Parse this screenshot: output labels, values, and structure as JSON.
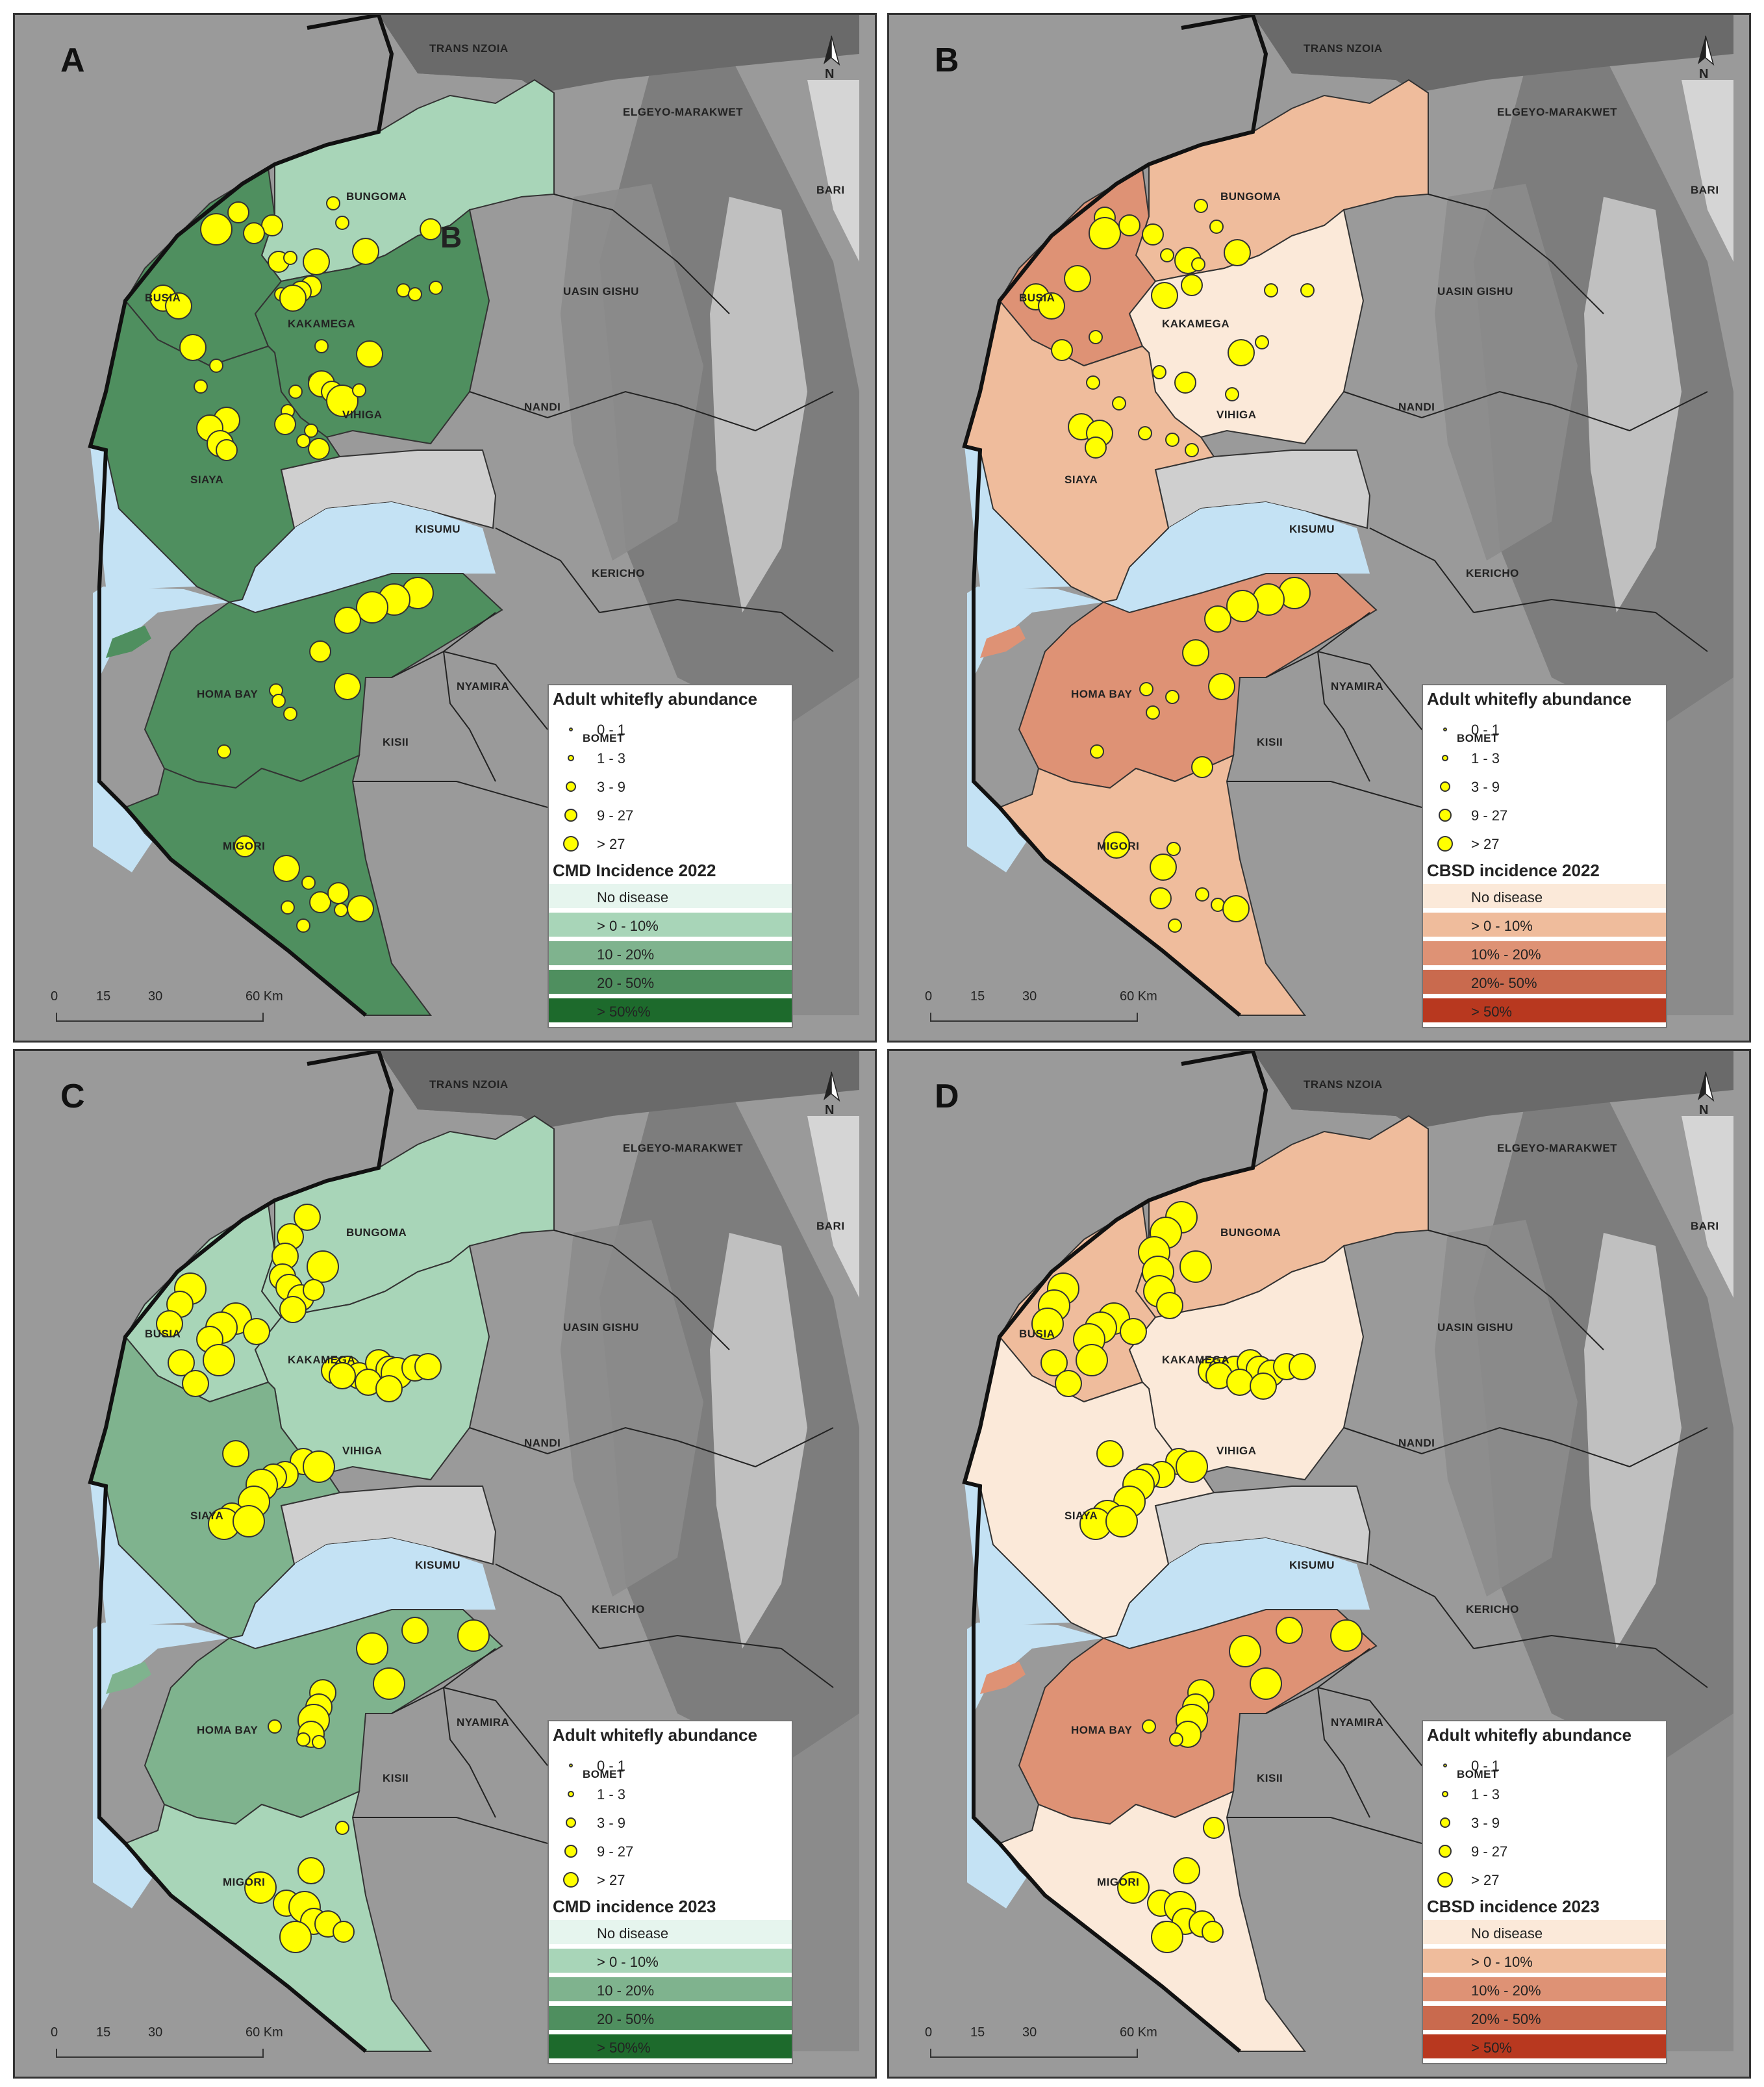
{
  "colors": {
    "lake": "#c4e2f4",
    "relief_light": "#d6d6d6",
    "relief_dark": "#666666",
    "dot_fill": "#ffff00",
    "cmd_scale": [
      "#e6f5ee",
      "#a8d5b8",
      "#7fb38e",
      "#4f8f5f",
      "#1d6a2c"
    ],
    "cbsd_scale": [
      "#fbe9d9",
      "#efbc9c",
      "#de9275",
      "#c96a4e",
      "#b8381f"
    ]
  },
  "counties": {
    "trans_nzoia": "TRANS NZOIA",
    "elgeyo": "ELGEYO-MARAKWET",
    "bungoma": "BUNGOMA",
    "busia": "BUSIA",
    "kakamega": "KAKAMEGA",
    "uasin_gishu": "UASIN GISHU",
    "nandi": "NANDI",
    "vihiga": "VIHIGA",
    "siaya": "SIAYA",
    "kisumu": "KISUMU",
    "kericho": "KERICHO",
    "homa_bay": "HOMA BAY",
    "nyamira": "NYAMIRA",
    "kisii": "KISII",
    "bomet": "BOMET",
    "migori": "MIGORI",
    "bari": "BARI"
  },
  "north_label": "N",
  "scale_ticks": [
    "0",
    "15",
    "30",
    "60 Km"
  ],
  "whitefly_legend": {
    "title": "Adult whitefly abundance",
    "classes": [
      "0 - 1",
      "1 - 3",
      "3 - 9",
      "9 - 27",
      "> 27"
    ]
  },
  "panels": [
    {
      "label": "A",
      "extra_label": "B",
      "scheme": "cmd",
      "legend_title": "CMD Incidence 2022",
      "legend_classes": [
        "No disease",
        "> 0 - 10%",
        "10 - 20%",
        "20 - 50%",
        "> 50%%"
      ],
      "incidence_class": {
        "bungoma": 1,
        "busia": 3,
        "kakamega": 3,
        "siaya": 3,
        "homa_bay": 3,
        "migori": 3
      },
      "points": [
        [
          165,
          175,
          4
        ],
        [
          182,
          162,
          2
        ],
        [
          208,
          172,
          2
        ],
        [
          255,
          155,
          1
        ],
        [
          330,
          175,
          2
        ],
        [
          262,
          170,
          1
        ],
        [
          194,
          178,
          2
        ],
        [
          213,
          200,
          2
        ],
        [
          222,
          197,
          1
        ],
        [
          242,
          200,
          3
        ],
        [
          280,
          192,
          3
        ],
        [
          238,
          219,
          2
        ],
        [
          230,
          223,
          2
        ],
        [
          124,
          228,
          3
        ],
        [
          136,
          234,
          3
        ],
        [
          215,
          225,
          1
        ],
        [
          224,
          228,
          3
        ],
        [
          309,
          222,
          1
        ],
        [
          318,
          225,
          1
        ],
        [
          334,
          220,
          1
        ],
        [
          147,
          266,
          3
        ],
        [
          165,
          280,
          1
        ],
        [
          283,
          271,
          3
        ],
        [
          246,
          265,
          1
        ],
        [
          241,
          291,
          1
        ],
        [
          226,
          300,
          1
        ],
        [
          246,
          294,
          3
        ],
        [
          254,
          300,
          2
        ],
        [
          262,
          307,
          4
        ],
        [
          153,
          296,
          1
        ],
        [
          275,
          299,
          1
        ],
        [
          220,
          315,
          1
        ],
        [
          218,
          325,
          2
        ],
        [
          173,
          322,
          3
        ],
        [
          160,
          328,
          3
        ],
        [
          168,
          340,
          3
        ],
        [
          238,
          330,
          1
        ],
        [
          232,
          338,
          1
        ],
        [
          173,
          345,
          2
        ],
        [
          244,
          344,
          2
        ],
        [
          320,
          455,
          4
        ],
        [
          302,
          460,
          4
        ],
        [
          285,
          466,
          4
        ],
        [
          266,
          476,
          3
        ],
        [
          245,
          500,
          2
        ],
        [
          266,
          527,
          3
        ],
        [
          211,
          530,
          1
        ],
        [
          213,
          538,
          1
        ],
        [
          222,
          548,
          1
        ],
        [
          171,
          577,
          1
        ],
        [
          187,
          650,
          2
        ],
        [
          219,
          667,
          3
        ],
        [
          236,
          678,
          1
        ],
        [
          245,
          693,
          2
        ],
        [
          259,
          686,
          2
        ],
        [
          276,
          698,
          3
        ],
        [
          220,
          697,
          1
        ],
        [
          261,
          699,
          1
        ],
        [
          232,
          711,
          1
        ]
      ]
    },
    {
      "label": "B",
      "scheme": "cbsd",
      "legend_title": "CBSD incidence 2022",
      "legend_classes": [
        "No disease",
        "> 0 - 10%",
        "10% - 20%",
        "20%- 50%",
        "> 50%"
      ],
      "incidence_class": {
        "bungoma": 1,
        "busia": 2,
        "kakamega": 0,
        "siaya": 1,
        "homa_bay": 2,
        "migori": 1
      },
      "points": [
        [
          836,
          166,
          2
        ],
        [
          836,
          178,
          4
        ],
        [
          855,
          172,
          2
        ],
        [
          873,
          179,
          2
        ],
        [
          910,
          157,
          1
        ],
        [
          922,
          173,
          1
        ],
        [
          938,
          193,
          3
        ],
        [
          900,
          199,
          3
        ],
        [
          884,
          195,
          1
        ],
        [
          908,
          202,
          1
        ],
        [
          903,
          218,
          2
        ],
        [
          882,
          226,
          3
        ],
        [
          815,
          213,
          3
        ],
        [
          964,
          222,
          1
        ],
        [
          992,
          222,
          1
        ],
        [
          783,
          227,
          3
        ],
        [
          795,
          234,
          3
        ],
        [
          957,
          262,
          1
        ],
        [
          941,
          270,
          3
        ],
        [
          803,
          268,
          2
        ],
        [
          829,
          258,
          1
        ],
        [
          878,
          285,
          1
        ],
        [
          898,
          293,
          2
        ],
        [
          934,
          302,
          1
        ],
        [
          827,
          293,
          1
        ],
        [
          847,
          309,
          1
        ],
        [
          818,
          327,
          3
        ],
        [
          832,
          332,
          3
        ],
        [
          867,
          332,
          1
        ],
        [
          888,
          337,
          1
        ],
        [
          829,
          343,
          2
        ],
        [
          903,
          345,
          1
        ],
        [
          982,
          455,
          4
        ],
        [
          962,
          460,
          4
        ],
        [
          942,
          465,
          4
        ],
        [
          923,
          475,
          3
        ],
        [
          906,
          501,
          3
        ],
        [
          926,
          527,
          3
        ],
        [
          868,
          529,
          1
        ],
        [
          873,
          547,
          1
        ],
        [
          888,
          535,
          1
        ],
        [
          830,
          577,
          1
        ],
        [
          911,
          589,
          2
        ],
        [
          845,
          649,
          3
        ],
        [
          881,
          666,
          3
        ],
        [
          889,
          652,
          1
        ],
        [
          879,
          690,
          2
        ],
        [
          923,
          695,
          1
        ],
        [
          911,
          687,
          1
        ],
        [
          937,
          698,
          3
        ],
        [
          890,
          711,
          1
        ]
      ]
    },
    {
      "label": "C",
      "scheme": "cmd",
      "legend_title": "CMD incidence 2023",
      "legend_classes": [
        "No disease",
        "> 0 - 10%",
        "10 - 20%",
        "20 - 50%",
        "> 50%%"
      ],
      "incidence_class": {
        "bungoma": 1,
        "busia": 1,
        "kakamega": 1,
        "siaya": 2,
        "homa_bay": 2,
        "migori": 1
      },
      "points": [
        [
          235,
          918,
          3
        ],
        [
          222,
          933,
          3
        ],
        [
          218,
          948,
          3
        ],
        [
          247,
          956,
          4
        ],
        [
          216,
          964,
          3
        ],
        [
          221,
          972,
          3
        ],
        [
          230,
          980,
          3
        ],
        [
          240,
          974,
          2
        ],
        [
          224,
          989,
          3
        ],
        [
          145,
          973,
          4
        ],
        [
          137,
          985,
          3
        ],
        [
          129,
          1000,
          3
        ],
        [
          180,
          996,
          4
        ],
        [
          169,
          1003,
          4
        ],
        [
          160,
          1012,
          3
        ],
        [
          196,
          1006,
          3
        ],
        [
          138,
          1030,
          3
        ],
        [
          167,
          1028,
          4
        ],
        [
          149,
          1046,
          3
        ],
        [
          256,
          1036,
          3
        ],
        [
          266,
          1035,
          3
        ],
        [
          275,
          1040,
          3
        ],
        [
          290,
          1030,
          3
        ],
        [
          298,
          1035,
          3
        ],
        [
          304,
          1038,
          4
        ],
        [
          318,
          1034,
          3
        ],
        [
          328,
          1033,
          3
        ],
        [
          262,
          1040,
          3
        ],
        [
          282,
          1045,
          3
        ],
        [
          298,
          1050,
          3
        ],
        [
          180,
          1100,
          3
        ],
        [
          232,
          1106,
          3
        ],
        [
          244,
          1110,
          4
        ],
        [
          218,
          1116,
          3
        ],
        [
          209,
          1118,
          3
        ],
        [
          200,
          1124,
          4
        ],
        [
          194,
          1137,
          4
        ],
        [
          177,
          1148,
          3
        ],
        [
          171,
          1154,
          4
        ],
        [
          190,
          1152,
          4
        ],
        [
          285,
          1250,
          4
        ],
        [
          318,
          1236,
          3
        ],
        [
          363,
          1240,
          4
        ],
        [
          298,
          1277,
          4
        ],
        [
          247,
          1284,
          3
        ],
        [
          244,
          1295,
          3
        ],
        [
          240,
          1305,
          4
        ],
        [
          238,
          1316,
          3
        ],
        [
          210,
          1310,
          1
        ],
        [
          232,
          1320,
          1
        ],
        [
          244,
          1322,
          1
        ],
        [
          262,
          1388,
          1
        ],
        [
          238,
          1421,
          3
        ],
        [
          199,
          1434,
          4
        ],
        [
          219,
          1446,
          3
        ],
        [
          233,
          1449,
          4
        ],
        [
          240,
          1460,
          3
        ],
        [
          226,
          1470,
          3
        ],
        [
          251,
          1462,
          3
        ],
        [
          226,
          1472,
          4
        ],
        [
          263,
          1468,
          2
        ]
      ]
    },
    {
      "label": "D",
      "scheme": "cbsd",
      "legend_title": "CBSD incidence 2023",
      "legend_classes": [
        "No disease",
        "> 0 - 10%",
        "10% - 20%",
        "20% - 50%",
        "> 50%"
      ],
      "incidence_class": {
        "bungoma": 1,
        "busia": 1,
        "kakamega": 0,
        "siaya": 0,
        "homa_bay": 2,
        "migori": 0
      },
      "points": [
        [
          895,
          918,
          4
        ],
        [
          883,
          930,
          4
        ],
        [
          874,
          945,
          4
        ],
        [
          906,
          956,
          4
        ],
        [
          877,
          960,
          4
        ],
        [
          878,
          975,
          4
        ],
        [
          886,
          986,
          3
        ],
        [
          804,
          973,
          4
        ],
        [
          797,
          986,
          4
        ],
        [
          792,
          1000,
          4
        ],
        [
          843,
          996,
          4
        ],
        [
          833,
          1003,
          4
        ],
        [
          824,
          1012,
          4
        ],
        [
          858,
          1006,
          3
        ],
        [
          797,
          1030,
          3
        ],
        [
          826,
          1028,
          4
        ],
        [
          808,
          1046,
          3
        ],
        [
          918,
          1036,
          3
        ],
        [
          926,
          1036,
          3
        ],
        [
          936,
          1035,
          3
        ],
        [
          948,
          1030,
          3
        ],
        [
          955,
          1035,
          3
        ],
        [
          964,
          1038,
          3
        ],
        [
          976,
          1033,
          3
        ],
        [
          988,
          1033,
          3
        ],
        [
          924,
          1040,
          3
        ],
        [
          940,
          1045,
          3
        ],
        [
          958,
          1048,
          3
        ],
        [
          840,
          1100,
          3
        ],
        [
          893,
          1106,
          3
        ],
        [
          903,
          1110,
          4
        ],
        [
          880,
          1116,
          3
        ],
        [
          868,
          1118,
          3
        ],
        [
          862,
          1124,
          4
        ],
        [
          855,
          1137,
          4
        ],
        [
          838,
          1148,
          4
        ],
        [
          829,
          1154,
          4
        ],
        [
          849,
          1152,
          4
        ],
        [
          944,
          1252,
          4
        ],
        [
          978,
          1236,
          3
        ],
        [
          1022,
          1240,
          4
        ],
        [
          960,
          1277,
          4
        ],
        [
          910,
          1284,
          3
        ],
        [
          906,
          1295,
          3
        ],
        [
          903,
          1305,
          4
        ],
        [
          900,
          1316,
          3
        ],
        [
          870,
          1310,
          1
        ],
        [
          891,
          1320,
          1
        ],
        [
          920,
          1388,
          2
        ],
        [
          899,
          1421,
          3
        ],
        [
          858,
          1434,
          4
        ],
        [
          879,
          1446,
          3
        ],
        [
          894,
          1449,
          4
        ],
        [
          898,
          1460,
          3
        ],
        [
          883,
          1470,
          3
        ],
        [
          911,
          1462,
          3
        ],
        [
          884,
          1472,
          4
        ],
        [
          919,
          1468,
          2
        ]
      ]
    }
  ]
}
